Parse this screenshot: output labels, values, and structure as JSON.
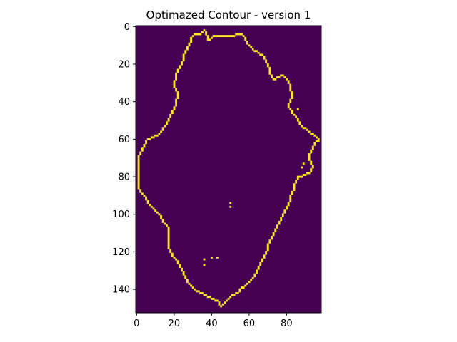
{
  "chart_data": {
    "type": "heatmap",
    "title": "Optimazed Contour - version 1",
    "xlabel": "",
    "ylabel": "",
    "colormap": "viridis",
    "colors": {
      "background": "#440154",
      "foreground": "#fde725"
    },
    "image_shape": {
      "rows": 153,
      "cols": 99
    },
    "xlim": [
      -0.5,
      98.5
    ],
    "ylim": [
      152.5,
      -0.5
    ],
    "x_ticks": [
      0,
      20,
      40,
      60,
      80
    ],
    "x_tick_labels": [
      "0",
      "20",
      "40",
      "60",
      "80"
    ],
    "y_ticks": [
      0,
      20,
      40,
      60,
      80,
      100,
      120,
      140
    ],
    "y_tick_labels": [
      "0",
      "20",
      "40",
      "60",
      "80",
      "100",
      "120",
      "140"
    ],
    "grid": false,
    "contour_points": [
      [
        36,
        2
      ],
      [
        35,
        3
      ],
      [
        34,
        4
      ],
      [
        31,
        4
      ],
      [
        30,
        5
      ],
      [
        29,
        6
      ],
      [
        29,
        8
      ],
      [
        28,
        10
      ],
      [
        27,
        12
      ],
      [
        26,
        14
      ],
      [
        25,
        16
      ],
      [
        25,
        18
      ],
      [
        24,
        20
      ],
      [
        23,
        22
      ],
      [
        22,
        24
      ],
      [
        21,
        26
      ],
      [
        21,
        28
      ],
      [
        20,
        30
      ],
      [
        20,
        32
      ],
      [
        21,
        34
      ],
      [
        22,
        36
      ],
      [
        22,
        38
      ],
      [
        21,
        40
      ],
      [
        21,
        42
      ],
      [
        20,
        44
      ],
      [
        19,
        46
      ],
      [
        18,
        48
      ],
      [
        17,
        50
      ],
      [
        16,
        52
      ],
      [
        15,
        53
      ],
      [
        14,
        55
      ],
      [
        12,
        57
      ],
      [
        10,
        58
      ],
      [
        8,
        59
      ],
      [
        6,
        60
      ],
      [
        5,
        62
      ],
      [
        4,
        64
      ],
      [
        3,
        66
      ],
      [
        2,
        68
      ],
      [
        1,
        70
      ],
      [
        1,
        72
      ],
      [
        1,
        74
      ],
      [
        1,
        76
      ],
      [
        1,
        78
      ],
      [
        1,
        80
      ],
      [
        1,
        82
      ],
      [
        1,
        84
      ],
      [
        1,
        86
      ],
      [
        2,
        88
      ],
      [
        4,
        90
      ],
      [
        5,
        92
      ],
      [
        6,
        94
      ],
      [
        8,
        96
      ],
      [
        10,
        98
      ],
      [
        12,
        100
      ],
      [
        13,
        102
      ],
      [
        14,
        104
      ],
      [
        16,
        106
      ],
      [
        17,
        108
      ],
      [
        17,
        110
      ],
      [
        17,
        112
      ],
      [
        17,
        114
      ],
      [
        17,
        116
      ],
      [
        17,
        118
      ],
      [
        18,
        120
      ],
      [
        19,
        122
      ],
      [
        21,
        124
      ],
      [
        22,
        126
      ],
      [
        23,
        128
      ],
      [
        24,
        130
      ],
      [
        25,
        132
      ],
      [
        26,
        134
      ],
      [
        27,
        136
      ],
      [
        29,
        138
      ],
      [
        31,
        140
      ],
      [
        33,
        141
      ],
      [
        35,
        142
      ],
      [
        37,
        143
      ],
      [
        39,
        144
      ],
      [
        41,
        145
      ],
      [
        43,
        146
      ],
      [
        44,
        148
      ],
      [
        45,
        149
      ],
      [
        46,
        148
      ],
      [
        48,
        146
      ],
      [
        50,
        144
      ],
      [
        52,
        143
      ],
      [
        54,
        142
      ],
      [
        55,
        140
      ],
      [
        57,
        139
      ],
      [
        58,
        138
      ],
      [
        60,
        136
      ],
      [
        62,
        134
      ],
      [
        63,
        132
      ],
      [
        64,
        130
      ],
      [
        65,
        128
      ],
      [
        66,
        126
      ],
      [
        67,
        124
      ],
      [
        68,
        122
      ],
      [
        69,
        120
      ],
      [
        70,
        118
      ],
      [
        70,
        116
      ],
      [
        71,
        114
      ],
      [
        72,
        112
      ],
      [
        73,
        110
      ],
      [
        74,
        108
      ],
      [
        75,
        106
      ],
      [
        76,
        104
      ],
      [
        77,
        102
      ],
      [
        78,
        100
      ],
      [
        79,
        98
      ],
      [
        80,
        96
      ],
      [
        81,
        94
      ],
      [
        82,
        92
      ],
      [
        82,
        90
      ],
      [
        83,
        88
      ],
      [
        84,
        86
      ],
      [
        84,
        84
      ],
      [
        85,
        82
      ],
      [
        86,
        80
      ],
      [
        88,
        80
      ],
      [
        90,
        79
      ],
      [
        92,
        78
      ],
      [
        93,
        76
      ],
      [
        94,
        74
      ],
      [
        93,
        72
      ],
      [
        92,
        70
      ],
      [
        92,
        68
      ],
      [
        93,
        66
      ],
      [
        94,
        64
      ],
      [
        95,
        62
      ],
      [
        96,
        61
      ],
      [
        97,
        61
      ],
      [
        97,
        60
      ],
      [
        96,
        59
      ],
      [
        95,
        58
      ],
      [
        93,
        57
      ],
      [
        92,
        56
      ],
      [
        91,
        55
      ],
      [
        89,
        54
      ],
      [
        88,
        53
      ],
      [
        87,
        51
      ],
      [
        86,
        49
      ],
      [
        84,
        47
      ],
      [
        83,
        45
      ],
      [
        81,
        43
      ],
      [
        81,
        41
      ],
      [
        82,
        39
      ],
      [
        83,
        37
      ],
      [
        83,
        35
      ],
      [
        82,
        33
      ],
      [
        82,
        31
      ],
      [
        81,
        29
      ],
      [
        80,
        28
      ],
      [
        79,
        27
      ],
      [
        77,
        26
      ],
      [
        75,
        27
      ],
      [
        73,
        28
      ],
      [
        72,
        26
      ],
      [
        71,
        24
      ],
      [
        71,
        22
      ],
      [
        70,
        20
      ],
      [
        69,
        18
      ],
      [
        68,
        16
      ],
      [
        66,
        15
      ],
      [
        65,
        14
      ],
      [
        63,
        13
      ],
      [
        62,
        12
      ],
      [
        61,
        11
      ],
      [
        60,
        10
      ],
      [
        59,
        8
      ],
      [
        58,
        6
      ],
      [
        57,
        5
      ],
      [
        56,
        4
      ],
      [
        55,
        4
      ],
      [
        53,
        4
      ],
      [
        51,
        5
      ],
      [
        49,
        5
      ],
      [
        47,
        5
      ],
      [
        45,
        5
      ],
      [
        43,
        5
      ],
      [
        41,
        5
      ],
      [
        40,
        6
      ],
      [
        39,
        7
      ],
      [
        38,
        7
      ],
      [
        38,
        5
      ],
      [
        37,
        3
      ],
      [
        36,
        2
      ]
    ],
    "isolated_points": [
      [
        50,
        94
      ],
      [
        50,
        96
      ],
      [
        36,
        124
      ],
      [
        36,
        127
      ],
      [
        40,
        123
      ],
      [
        43,
        123
      ],
      [
        71,
        24
      ],
      [
        86,
        44
      ],
      [
        88,
        75
      ],
      [
        89,
        73
      ]
    ]
  }
}
